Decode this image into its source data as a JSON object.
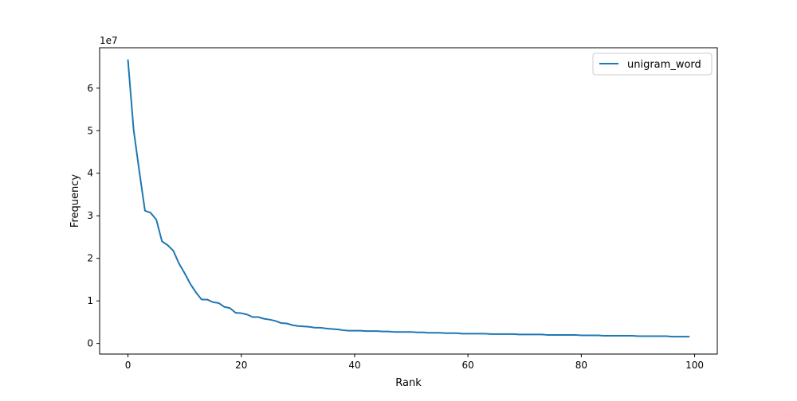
{
  "chart_data": {
    "type": "line",
    "xlabel": "Rank",
    "ylabel": "Frequency",
    "y_offset_label": "1e7",
    "xlim": [
      -5,
      104
    ],
    "ylim": [
      -0.25,
      6.95
    ],
    "x_ticks": [
      0,
      20,
      40,
      60,
      80,
      100
    ],
    "y_ticks": [
      0,
      1,
      2,
      3,
      4,
      5,
      6
    ],
    "grid": false,
    "legend_position": "top-right",
    "line_color": "#1f77b4",
    "series": [
      {
        "name": "unigram_word",
        "x": [
          0,
          1,
          2,
          3,
          4,
          5,
          6,
          7,
          8,
          9,
          10,
          11,
          12,
          13,
          14,
          15,
          16,
          17,
          18,
          19,
          20,
          21,
          22,
          23,
          24,
          25,
          26,
          27,
          28,
          29,
          30,
          31,
          32,
          33,
          34,
          35,
          36,
          37,
          38,
          39,
          40,
          41,
          42,
          43,
          44,
          45,
          46,
          47,
          48,
          49,
          50,
          51,
          52,
          53,
          54,
          55,
          56,
          57,
          58,
          59,
          60,
          61,
          62,
          63,
          64,
          65,
          66,
          67,
          68,
          69,
          70,
          71,
          72,
          73,
          74,
          75,
          76,
          77,
          78,
          79,
          80,
          81,
          82,
          83,
          84,
          85,
          86,
          87,
          88,
          89,
          90,
          91,
          92,
          93,
          94,
          95,
          96,
          97,
          98,
          99
        ],
        "values": [
          6.66,
          5.02,
          4.05,
          3.12,
          3.07,
          2.91,
          2.4,
          2.31,
          2.18,
          1.88,
          1.65,
          1.4,
          1.2,
          1.03,
          1.03,
          0.97,
          0.95,
          0.86,
          0.83,
          0.72,
          0.71,
          0.68,
          0.62,
          0.62,
          0.58,
          0.56,
          0.53,
          0.48,
          0.47,
          0.43,
          0.41,
          0.4,
          0.39,
          0.37,
          0.37,
          0.35,
          0.34,
          0.33,
          0.31,
          0.3,
          0.3,
          0.3,
          0.29,
          0.29,
          0.29,
          0.28,
          0.28,
          0.27,
          0.27,
          0.27,
          0.27,
          0.26,
          0.26,
          0.25,
          0.25,
          0.25,
          0.24,
          0.24,
          0.24,
          0.23,
          0.23,
          0.23,
          0.23,
          0.23,
          0.22,
          0.22,
          0.22,
          0.22,
          0.22,
          0.21,
          0.21,
          0.21,
          0.21,
          0.21,
          0.2,
          0.2,
          0.2,
          0.2,
          0.2,
          0.2,
          0.19,
          0.19,
          0.19,
          0.19,
          0.18,
          0.18,
          0.18,
          0.18,
          0.18,
          0.18,
          0.17,
          0.17,
          0.17,
          0.17,
          0.17,
          0.17,
          0.16,
          0.16,
          0.16,
          0.16
        ]
      }
    ]
  }
}
